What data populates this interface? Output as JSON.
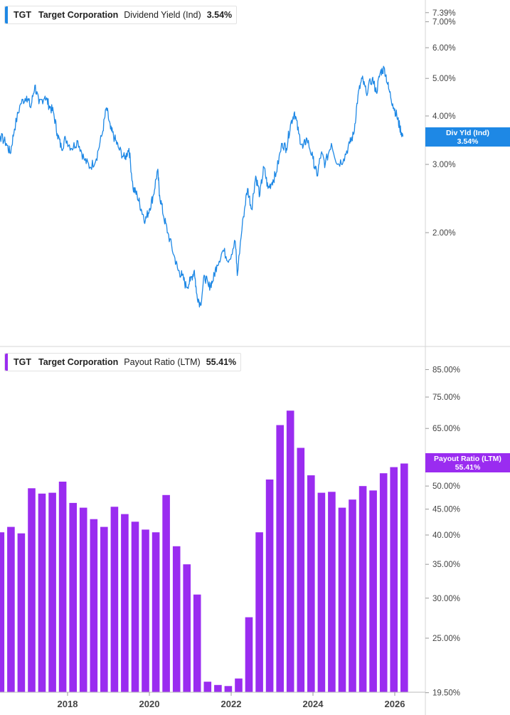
{
  "colors": {
    "yield": "#1e88e5",
    "payout": "#9a2cf0",
    "axis_text": "#444444",
    "grid": "#d6d6d6"
  },
  "panel_top": {
    "ticker": "TGT",
    "company": "Target Corporation",
    "metric": "Dividend Yield (Ind)",
    "value": "3.54%",
    "tag_line1": "Div Yld (Ind)",
    "tag_line2": "3.54%"
  },
  "panel_bottom": {
    "ticker": "TGT",
    "company": "Target Corporation",
    "metric": "Payout Ratio (LTM)",
    "value": "55.41%",
    "tag_line1": "Payout Ratio (LTM)",
    "tag_line2": "55.41%"
  },
  "chart_data": [
    {
      "type": "line",
      "name": "Dividend Yield (Ind)",
      "scale": "log",
      "y_ticks": [
        "2.00%",
        "3.00%",
        "4.00%",
        "5.00%",
        "6.00%",
        "7.00%",
        "7.39%"
      ],
      "y_range": [
        1.2,
        7.6
      ],
      "x_range": [
        2016.0,
        2026.4
      ],
      "x_ticks": [
        "2018",
        "2020",
        "2022",
        "2024",
        "2026"
      ],
      "points": [
        [
          2016.0,
          2.9
        ],
        [
          2016.1,
          3.45
        ],
        [
          2016.2,
          3.3
        ],
        [
          2016.35,
          3.55
        ],
        [
          2016.5,
          3.4
        ],
        [
          2016.6,
          3.2
        ],
        [
          2016.7,
          3.7
        ],
        [
          2016.85,
          4.3
        ],
        [
          2017.0,
          4.5
        ],
        [
          2017.1,
          4.2
        ],
        [
          2017.2,
          4.8
        ],
        [
          2017.3,
          4.3
        ],
        [
          2017.45,
          4.5
        ],
        [
          2017.55,
          4.25
        ],
        [
          2017.65,
          4.1
        ],
        [
          2017.75,
          3.6
        ],
        [
          2017.85,
          3.3
        ],
        [
          2017.95,
          3.5
        ],
        [
          2018.1,
          3.3
        ],
        [
          2018.25,
          3.45
        ],
        [
          2018.4,
          3.1
        ],
        [
          2018.55,
          2.95
        ],
        [
          2018.7,
          3.1
        ],
        [
          2018.85,
          3.6
        ],
        [
          2018.95,
          4.2
        ],
        [
          2019.05,
          3.7
        ],
        [
          2019.15,
          3.5
        ],
        [
          2019.25,
          3.3
        ],
        [
          2019.4,
          3.1
        ],
        [
          2019.5,
          3.3
        ],
        [
          2019.6,
          2.6
        ],
        [
          2019.7,
          2.5
        ],
        [
          2019.8,
          2.3
        ],
        [
          2019.9,
          2.15
        ],
        [
          2020.0,
          2.3
        ],
        [
          2020.1,
          2.5
        ],
        [
          2020.2,
          2.9
        ],
        [
          2020.25,
          2.5
        ],
        [
          2020.35,
          2.2
        ],
        [
          2020.45,
          2.0
        ],
        [
          2020.6,
          1.75
        ],
        [
          2020.7,
          1.6
        ],
        [
          2020.8,
          1.55
        ],
        [
          2020.9,
          1.45
        ],
        [
          2021.0,
          1.5
        ],
        [
          2021.1,
          1.6
        ],
        [
          2021.15,
          1.4
        ],
        [
          2021.25,
          1.3
        ],
        [
          2021.35,
          1.55
        ],
        [
          2021.45,
          1.45
        ],
        [
          2021.55,
          1.5
        ],
        [
          2021.65,
          1.65
        ],
        [
          2021.8,
          1.8
        ],
        [
          2021.95,
          1.7
        ],
        [
          2022.1,
          1.9
        ],
        [
          2022.15,
          1.55
        ],
        [
          2022.3,
          2.2
        ],
        [
          2022.4,
          2.6
        ],
        [
          2022.5,
          2.3
        ],
        [
          2022.6,
          2.8
        ],
        [
          2022.7,
          2.5
        ],
        [
          2022.8,
          2.95
        ],
        [
          2022.9,
          2.6
        ],
        [
          2023.0,
          2.7
        ],
        [
          2023.1,
          2.85
        ],
        [
          2023.25,
          3.4
        ],
        [
          2023.35,
          3.3
        ],
        [
          2023.45,
          3.8
        ],
        [
          2023.55,
          4.1
        ],
        [
          2023.65,
          3.6
        ],
        [
          2023.75,
          3.3
        ],
        [
          2023.85,
          3.5
        ],
        [
          2024.0,
          3.1
        ],
        [
          2024.1,
          2.8
        ],
        [
          2024.2,
          3.2
        ],
        [
          2024.3,
          3.0
        ],
        [
          2024.45,
          3.4
        ],
        [
          2024.6,
          3.0
        ],
        [
          2024.75,
          3.1
        ],
        [
          2024.9,
          3.4
        ],
        [
          2025.0,
          3.6
        ],
        [
          2025.1,
          4.5
        ],
        [
          2025.2,
          5.0
        ],
        [
          2025.3,
          4.6
        ],
        [
          2025.45,
          5.0
        ],
        [
          2025.55,
          4.6
        ],
        [
          2025.65,
          5.2
        ],
        [
          2025.75,
          5.3
        ],
        [
          2025.85,
          4.7
        ],
        [
          2025.95,
          4.3
        ],
        [
          2026.05,
          4.0
        ],
        [
          2026.12,
          3.75
        ],
        [
          2026.2,
          3.54
        ]
      ],
      "last_value": 3.54
    },
    {
      "type": "bar",
      "name": "Payout Ratio (LTM)",
      "scale": "log",
      "y_ticks": [
        "19.50%",
        "25.00%",
        "30.00%",
        "35.00%",
        "40.00%",
        "45.00%",
        "50.00%",
        "65.00%",
        "75.00%",
        "85.00%"
      ],
      "y_range": [
        19.5,
        90
      ],
      "x_range": [
        2016.0,
        2026.4
      ],
      "x_ticks": [
        "2018",
        "2020",
        "2022",
        "2024",
        "2026"
      ],
      "categories": [
        "2016Q1",
        "2016Q2",
        "2016Q3",
        "2016Q4",
        "2017Q1",
        "2017Q2",
        "2017Q3",
        "2017Q4",
        "2018Q1",
        "2018Q2",
        "2018Q3",
        "2018Q4",
        "2019Q1",
        "2019Q2",
        "2019Q3",
        "2019Q4",
        "2020Q1",
        "2020Q2",
        "2020Q3",
        "2020Q4",
        "2021Q1",
        "2021Q2",
        "2021Q3",
        "2021Q4",
        "2022Q1",
        "2022Q2",
        "2022Q3",
        "2022Q4",
        "2023Q1",
        "2023Q2",
        "2023Q3",
        "2023Q4",
        "2024Q1",
        "2024Q2",
        "2024Q3",
        "2024Q4",
        "2025Q1",
        "2025Q2",
        "2025Q3",
        "2025Q4"
      ],
      "values": [
        40.5,
        41.5,
        40.3,
        49.5,
        48.3,
        48.5,
        51.0,
        46.3,
        45.3,
        43.0,
        41.5,
        45.5,
        44.0,
        42.5,
        41.0,
        40.5,
        48.0,
        38.0,
        35.0,
        30.5,
        20.5,
        20.2,
        20.1,
        20.8,
        27.5,
        40.5,
        51.5,
        66.0,
        70.5,
        59.5,
        52.5,
        48.5,
        48.7,
        45.3,
        47.0,
        50.0,
        49.0,
        53.0,
        54.5,
        55.41
      ],
      "last_value": 55.41
    }
  ]
}
